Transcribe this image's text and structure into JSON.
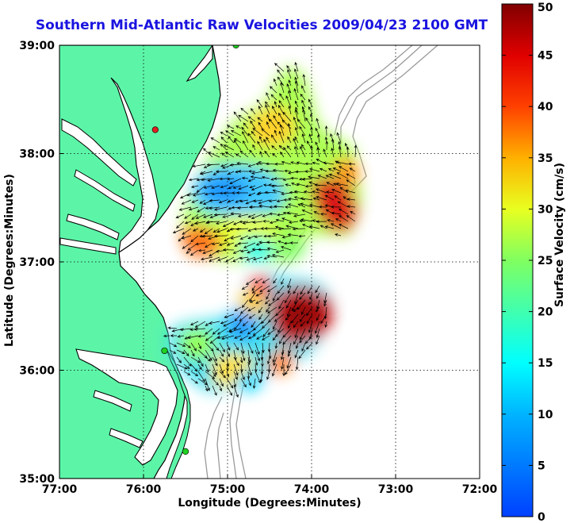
{
  "chart_data": {
    "type": "heatmap",
    "title": "Southern Mid-Atlantic Raw Velocities 2009/04/23 2100 GMT",
    "xlabel": "Longitude (Degrees:Minutes)",
    "ylabel": "Latitude (Degrees:Minutes)",
    "x_ticks": [
      {
        "value": -77,
        "label": "77:00"
      },
      {
        "value": -76,
        "label": "76:00"
      },
      {
        "value": -75,
        "label": "75:00"
      },
      {
        "value": -74,
        "label": "74:00"
      },
      {
        "value": -73,
        "label": "73:00"
      },
      {
        "value": -72,
        "label": "72:00"
      }
    ],
    "y_ticks": [
      {
        "value": 39,
        "label": "39:00"
      },
      {
        "value": 38,
        "label": "38:00"
      },
      {
        "value": 37,
        "label": "37:00"
      },
      {
        "value": 36,
        "label": "36:00"
      },
      {
        "value": 35,
        "label": "35:00"
      }
    ],
    "xlim": [
      -77,
      -72
    ],
    "ylim": [
      35,
      39
    ],
    "grid": true,
    "colorbar": {
      "label": "Surface Velocity (cm/s)",
      "range": [
        0,
        50
      ],
      "ticks": [
        0,
        5,
        10,
        15,
        20,
        25,
        30,
        35,
        40,
        45,
        50
      ],
      "colormap": "jet"
    },
    "stations": [
      {
        "lon": -74.9,
        "lat": 39.0,
        "color": "#20d020"
      },
      {
        "lon": -75.86,
        "lat": 38.22,
        "color": "#e02020"
      },
      {
        "lon": -75.75,
        "lat": 36.18,
        "color": "#20d020"
      },
      {
        "lon": -75.5,
        "lat": 35.25,
        "color": "#20d020"
      }
    ],
    "colors": {
      "land": "#5cf5a8",
      "coast": "#000000",
      "bathymetry": "#9a9a9a"
    }
  }
}
